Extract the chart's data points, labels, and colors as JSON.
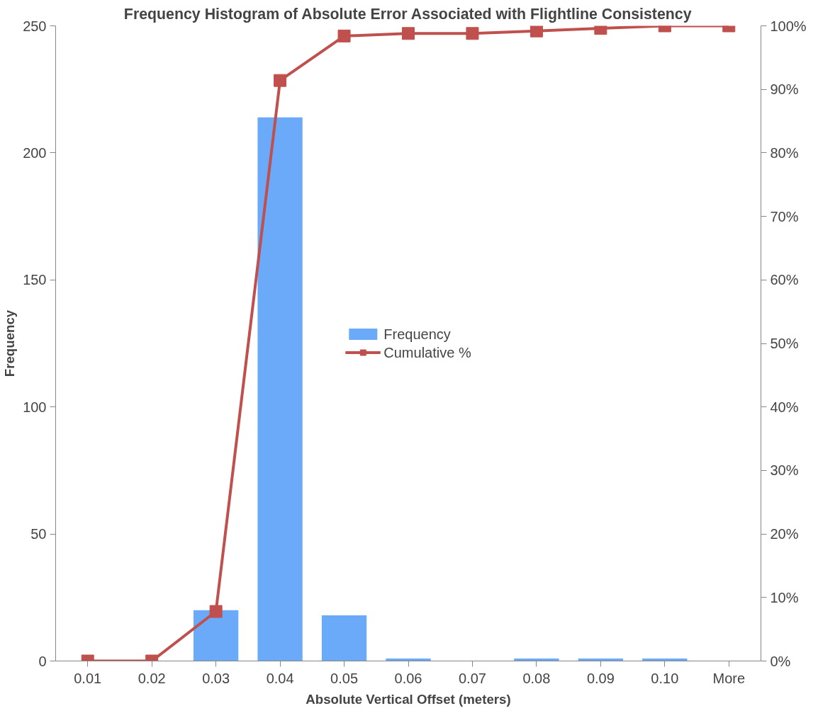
{
  "chart_data": {
    "type": "bar",
    "title": "Frequency Histogram of Absolute Error Associated with Flightline Consistency",
    "xlabel": "Absolute Vertical Offset (meters)",
    "ylabel": "Frequency",
    "categories": [
      "0.01",
      "0.02",
      "0.03",
      "0.04",
      "0.05",
      "0.06",
      "0.07",
      "0.08",
      "0.09",
      "0.10",
      "More"
    ],
    "series": [
      {
        "name": "Frequency",
        "color": "#6aaaf8",
        "values": [
          0,
          0,
          20,
          214,
          18,
          1,
          0,
          1,
          1,
          1,
          0
        ]
      },
      {
        "name": "Cumulative %",
        "type": "line",
        "axis": "y2",
        "color": "#c0504d",
        "marker": "square",
        "values": [
          0,
          0,
          7.8,
          91.4,
          98.4,
          98.8,
          98.8,
          99.2,
          99.6,
          100,
          100
        ]
      }
    ],
    "ylim": [
      0,
      250
    ],
    "yticks": [
      0,
      50,
      100,
      150,
      200,
      250
    ],
    "y2lim": [
      0,
      100
    ],
    "y2ticks": [
      {
        "value": 0,
        "label": "0%"
      },
      {
        "value": 10,
        "label": "10%"
      },
      {
        "value": 20,
        "label": "20%"
      },
      {
        "value": 30,
        "label": "30%"
      },
      {
        "value": 40,
        "label": "40%"
      },
      {
        "value": 50,
        "label": "50%"
      },
      {
        "value": 60,
        "label": "60%"
      },
      {
        "value": 70,
        "label": "70%"
      },
      {
        "value": 80,
        "label": "80%"
      },
      {
        "value": 90,
        "label": "90%"
      },
      {
        "value": 100,
        "label": "100%"
      }
    ],
    "grid": false,
    "legend": "center"
  }
}
